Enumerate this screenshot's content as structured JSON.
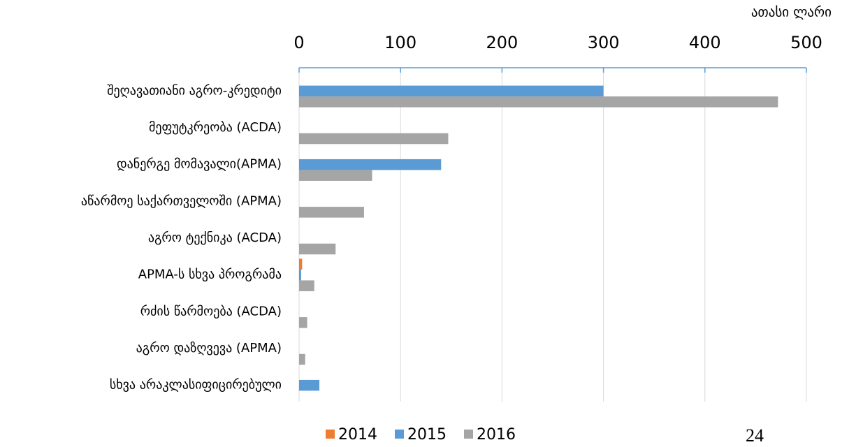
{
  "chart_data": {
    "type": "bar",
    "orientation": "horizontal",
    "unit_label": "ათასი ლარი",
    "page_number": "24",
    "categories": [
      "შეღავათიანი აგრო-კრედიტი",
      "მეფუტკრეობა (ACDA)",
      "დანერგე მომავალი(APMA)",
      "აწარმოე საქართველოში (APMA)",
      "აგრო ტექნიკა (ACDA)",
      "APMA-ს სხვა პროგრამა",
      "რძის წარმოება (ACDA)",
      "აგრო დაზღვევა (APMA)",
      "სხვა არაკლასიფიცირებული"
    ],
    "series": [
      {
        "name": "2014",
        "color": "#ed7d31",
        "values": [
          null,
          null,
          null,
          null,
          null,
          3,
          null,
          null,
          null
        ]
      },
      {
        "name": "2015",
        "color": "#5b9bd5",
        "values": [
          300,
          null,
          140,
          null,
          null,
          2,
          null,
          null,
          20
        ]
      },
      {
        "name": "2016",
        "color": "#a5a5a5",
        "values": [
          472,
          147,
          72,
          64,
          36,
          15,
          8,
          6,
          null
        ]
      }
    ],
    "xlim": [
      0,
      500
    ],
    "xticks": [
      0,
      100,
      200,
      300,
      400,
      500
    ],
    "grid": true,
    "legend": "bottom"
  }
}
